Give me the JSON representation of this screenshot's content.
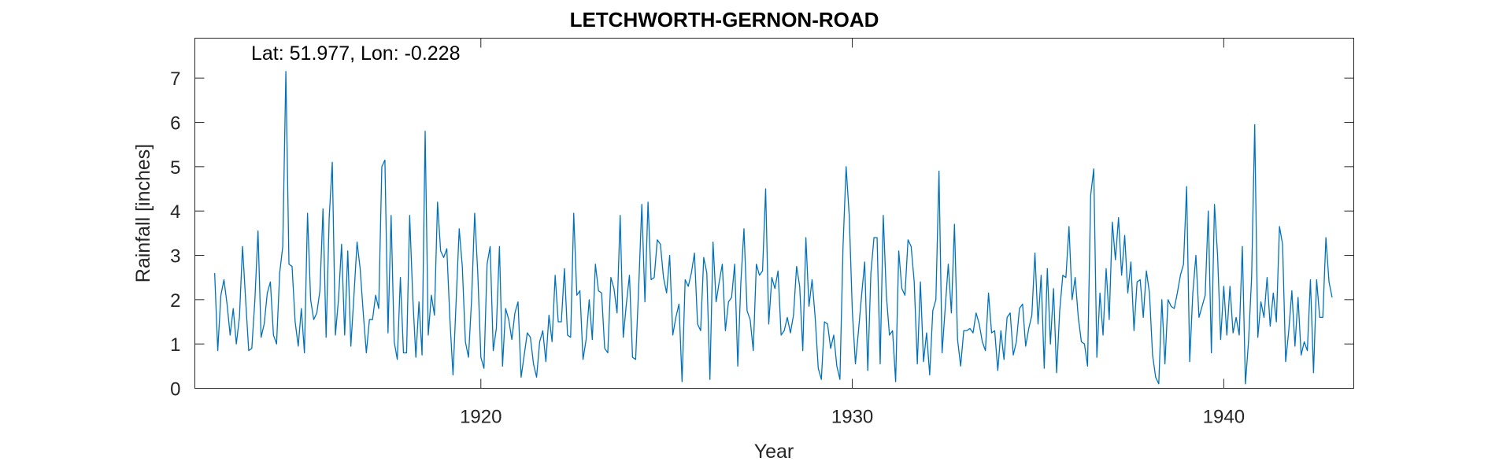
{
  "chart_data": {
    "type": "line",
    "title": "LETCHWORTH-GERNON-ROAD",
    "xlabel": "Year",
    "ylabel": "Rainfall [inches]",
    "annotation": "Lat: 51.977, Lon: -0.228",
    "xlim": [
      1912.3,
      1943.5
    ],
    "ylim": [
      0,
      7.9
    ],
    "xticks": [
      1920,
      1930,
      1940
    ],
    "yticks": [
      0,
      1,
      2,
      3,
      4,
      5,
      6,
      7
    ],
    "line_color": "#0072BD",
    "grid": false,
    "x_start": "1912-11",
    "x_step": "1 month",
    "series": [
      {
        "values": [
          2.6,
          0.85,
          2.1,
          2.45,
          1.9,
          1.2,
          1.8,
          1.0,
          1.6,
          3.2,
          2.0,
          0.85,
          0.9,
          2.0,
          3.55,
          1.15,
          1.45,
          2.15,
          2.4,
          1.2,
          1.0,
          2.6,
          3.2,
          7.15,
          2.8,
          2.75,
          1.5,
          0.95,
          1.8,
          0.8,
          3.95,
          2.0,
          1.55,
          1.7,
          2.2,
          4.05,
          1.15,
          3.85,
          5.1,
          1.2,
          2.0,
          3.25,
          1.2,
          3.1,
          0.95,
          2.1,
          3.3,
          2.7,
          1.7,
          0.8,
          1.55,
          1.55,
          2.1,
          1.8,
          5.0,
          5.15,
          1.25,
          3.9,
          1.05,
          0.65,
          2.5,
          0.8,
          0.8,
          3.9,
          2.05,
          0.7,
          1.95,
          0.75,
          5.8,
          1.2,
          2.1,
          1.65,
          4.2,
          3.1,
          2.95,
          3.15,
          1.55,
          0.3,
          1.95,
          3.6,
          2.75,
          1.05,
          0.7,
          2.0,
          3.95,
          2.6,
          0.7,
          0.45,
          2.8,
          3.2,
          0.85,
          1.35,
          3.2,
          0.5,
          1.8,
          1.55,
          1.1,
          1.7,
          1.95,
          0.25,
          0.75,
          1.25,
          1.15,
          0.55,
          0.25,
          1.05,
          1.3,
          0.6,
          1.65,
          1.05,
          2.55,
          1.5,
          1.5,
          2.7,
          1.2,
          1.15,
          3.95,
          2.1,
          2.2,
          0.65,
          1.1,
          2.0,
          1.1,
          2.8,
          2.2,
          2.15,
          0.9,
          0.8,
          2.5,
          2.25,
          1.7,
          3.9,
          1.15,
          1.9,
          2.55,
          0.7,
          0.65,
          2.3,
          4.15,
          1.95,
          4.2,
          2.45,
          2.5,
          3.35,
          3.25,
          2.5,
          2.15,
          3.0,
          1.2,
          1.6,
          1.9,
          0.15,
          2.45,
          2.3,
          2.6,
          3.05,
          1.45,
          1.3,
          2.95,
          2.6,
          0.2,
          3.3,
          1.95,
          2.4,
          2.8,
          1.3,
          1.95,
          2.05,
          2.8,
          0.5,
          2.4,
          3.6,
          1.75,
          1.55,
          0.85,
          2.8,
          2.55,
          2.65,
          4.5,
          1.45,
          2.5,
          2.25,
          2.65,
          1.2,
          1.3,
          1.6,
          1.25,
          1.65,
          2.75,
          2.3,
          0.85,
          3.4,
          1.85,
          2.45,
          1.6,
          0.45,
          0.2,
          1.5,
          1.45,
          0.9,
          1.2,
          0.5,
          0.2,
          3.2,
          5.0,
          3.9,
          1.75,
          0.55,
          1.3,
          2.1,
          2.85,
          0.4,
          2.6,
          3.4,
          3.4,
          0.55,
          3.9,
          2.1,
          1.2,
          1.3,
          0.15,
          3.1,
          2.25,
          2.1,
          3.35,
          3.2,
          2.4,
          0.55,
          2.4,
          0.6,
          1.25,
          0.3,
          1.75,
          2.0,
          4.9,
          0.8,
          1.8,
          2.8,
          1.7,
          3.7,
          1.1,
          0.5,
          1.3,
          1.3,
          1.35,
          1.25,
          1.7,
          1.45,
          1.05,
          0.85,
          2.15,
          1.25,
          1.3,
          0.4,
          1.3,
          0.65,
          1.6,
          1.7,
          0.75,
          1.05,
          1.8,
          1.9,
          0.95,
          1.35,
          1.65,
          3.05,
          1.45,
          2.55,
          0.45,
          2.7,
          1.0,
          2.25,
          0.35,
          1.75,
          2.55,
          2.5,
          3.65,
          2.0,
          2.5,
          1.6,
          1.05,
          1.0,
          0.5,
          4.35,
          4.95,
          0.7,
          2.15,
          1.2,
          2.7,
          1.55,
          3.75,
          2.9,
          3.85,
          2.55,
          3.45,
          2.15,
          2.85,
          1.3,
          2.4,
          2.45,
          1.6,
          2.65,
          2.15,
          0.75,
          0.25,
          0.1,
          2.0,
          0.55,
          2.0,
          1.85,
          1.8,
          2.15,
          2.55,
          2.8,
          4.55,
          0.6,
          2.15,
          3.0,
          1.6,
          1.85,
          2.1,
          4.0,
          0.8,
          4.15,
          3.0,
          1.1,
          2.3,
          1.2,
          2.3,
          1.25,
          1.6,
          1.2,
          3.2,
          0.1,
          1.05,
          2.5,
          5.95,
          1.15,
          1.95,
          1.6,
          2.5,
          1.4,
          2.15,
          1.5,
          3.65,
          3.25,
          0.6,
          1.3,
          2.2,
          0.95,
          2.05,
          0.75,
          1.05,
          0.85,
          2.45,
          0.35,
          2.45,
          1.6,
          1.6,
          3.4,
          2.4,
          2.05
        ]
      }
    ]
  }
}
